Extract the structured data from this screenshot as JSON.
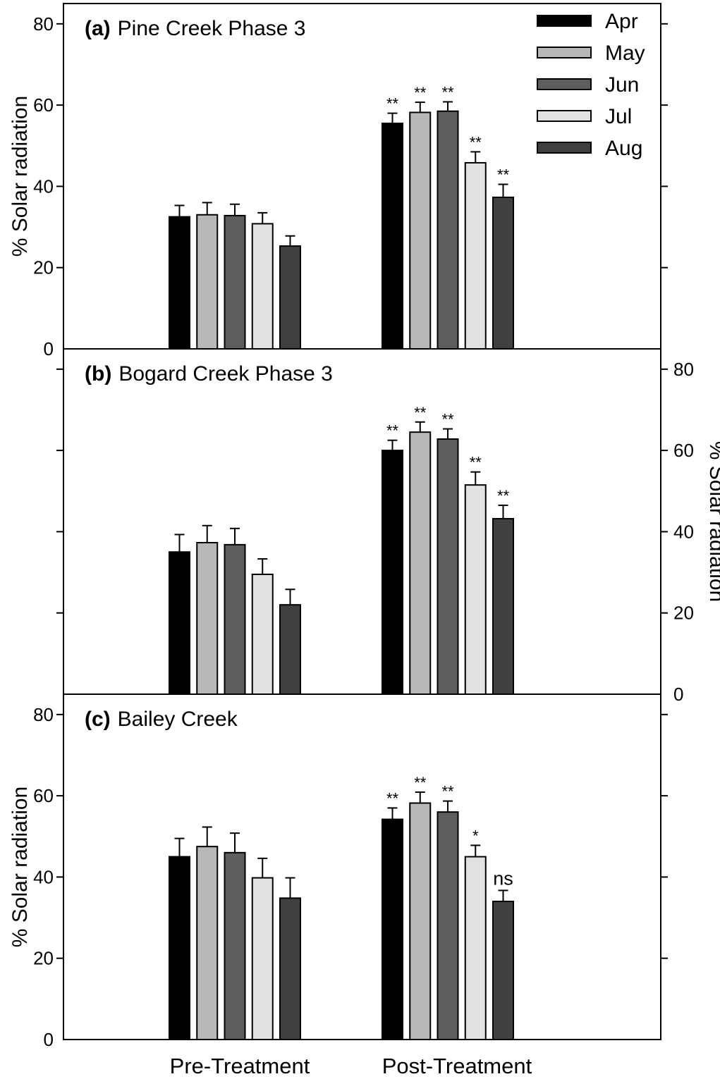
{
  "chart_data": [
    {
      "type": "bar",
      "title_letter": "(a)",
      "title": "Pine Creek Phase 3",
      "ylabel": "% Solar radiation",
      "y_axis_side": "left",
      "ylim": [
        0,
        85
      ],
      "yticks": [
        0,
        20,
        40,
        60,
        80
      ],
      "categories": [
        "Pre-Treatment",
        "Post-Treatment"
      ],
      "series": [
        {
          "name": "Apr",
          "values": [
            32.5,
            55.5
          ],
          "errors": [
            2.8,
            2.5
          ],
          "significance": [
            "",
            "**"
          ]
        },
        {
          "name": "May",
          "values": [
            33.0,
            58.2
          ],
          "errors": [
            3.0,
            2.5
          ],
          "significance": [
            "",
            "**"
          ]
        },
        {
          "name": "Jun",
          "values": [
            32.8,
            58.5
          ],
          "errors": [
            2.8,
            2.3
          ],
          "significance": [
            "",
            "**"
          ]
        },
        {
          "name": "Jul",
          "values": [
            30.8,
            45.8
          ],
          "errors": [
            2.7,
            2.7
          ],
          "significance": [
            "",
            "**"
          ]
        },
        {
          "name": "Aug",
          "values": [
            25.3,
            37.3
          ],
          "errors": [
            2.5,
            3.2
          ],
          "significance": [
            "",
            "**"
          ]
        }
      ]
    },
    {
      "type": "bar",
      "title_letter": "(b)",
      "title": "Bogard Creek Phase 3",
      "ylabel": "% Solar radiation",
      "y_axis_side": "right",
      "ylim": [
        0,
        85
      ],
      "yticks": [
        0,
        20,
        40,
        60,
        80
      ],
      "categories": [
        "Pre-Treatment",
        "Post-Treatment"
      ],
      "series": [
        {
          "name": "Apr",
          "values": [
            35.0,
            60.0
          ],
          "errors": [
            4.3,
            2.5
          ],
          "significance": [
            "",
            "**"
          ]
        },
        {
          "name": "May",
          "values": [
            37.3,
            64.5
          ],
          "errors": [
            4.2,
            2.5
          ],
          "significance": [
            "",
            "**"
          ]
        },
        {
          "name": "Jun",
          "values": [
            36.8,
            62.8
          ],
          "errors": [
            4.0,
            2.5
          ],
          "significance": [
            "",
            "**"
          ]
        },
        {
          "name": "Jul",
          "values": [
            29.5,
            51.5
          ],
          "errors": [
            3.8,
            3.2
          ],
          "significance": [
            "",
            "**"
          ]
        },
        {
          "name": "Aug",
          "values": [
            22.0,
            43.2
          ],
          "errors": [
            3.8,
            3.3
          ],
          "significance": [
            "",
            "**"
          ]
        }
      ]
    },
    {
      "type": "bar",
      "title_letter": "(c)",
      "title": "Bailey Creek",
      "ylabel": "% Solar radiation",
      "y_axis_side": "left",
      "ylim": [
        0,
        85
      ],
      "yticks": [
        0,
        20,
        40,
        60,
        80
      ],
      "categories": [
        "Pre-Treatment",
        "Post-Treatment"
      ],
      "series": [
        {
          "name": "Apr",
          "values": [
            45.0,
            54.2
          ],
          "errors": [
            4.5,
            2.8
          ],
          "significance": [
            "",
            "**"
          ]
        },
        {
          "name": "May",
          "values": [
            47.5,
            58.2
          ],
          "errors": [
            4.8,
            2.7
          ],
          "significance": [
            "",
            "**"
          ]
        },
        {
          "name": "Jun",
          "values": [
            46.0,
            56.0
          ],
          "errors": [
            4.8,
            2.7
          ],
          "significance": [
            "",
            "**"
          ]
        },
        {
          "name": "Jul",
          "values": [
            39.8,
            45.0
          ],
          "errors": [
            4.8,
            2.8
          ],
          "significance": [
            "",
            "*"
          ]
        },
        {
          "name": "Aug",
          "values": [
            34.8,
            34.0
          ],
          "errors": [
            5.0,
            2.7
          ],
          "significance": [
            "",
            "ns"
          ]
        }
      ]
    }
  ],
  "legend": {
    "placement": "top-right",
    "entries": [
      "Apr",
      "May",
      "Jun",
      "Jul",
      "Aug"
    ]
  },
  "colors": {
    "Apr": "#000000",
    "May": "#b8b8b8",
    "Jun": "#5e5e5e",
    "Jul": "#e2e2e2",
    "Aug": "#404040"
  }
}
